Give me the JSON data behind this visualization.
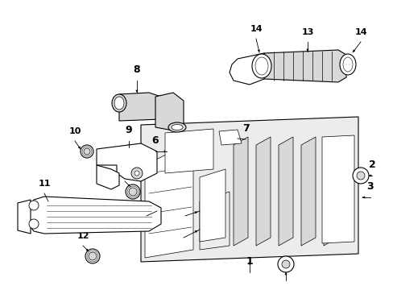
{
  "fig_width": 4.89,
  "fig_height": 3.6,
  "dpi": 100,
  "bg": "#ffffff",
  "lc": "#000000",
  "fill_white": "#ffffff",
  "fill_gray": "#d8d8d8",
  "fill_light": "#ececec"
}
